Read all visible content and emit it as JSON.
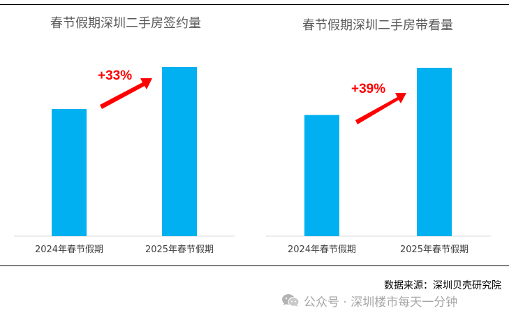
{
  "chart_data": [
    {
      "type": "bar",
      "title": "春节假期深圳二手房签约量",
      "categories": [
        "2024年春节假期",
        "2025年春节假期"
      ],
      "values": [
        100,
        133
      ],
      "annotation": "+33%",
      "bar_color": "#00b0f0"
    },
    {
      "type": "bar",
      "title": "春节假期深圳二手房带看量",
      "categories": [
        "2024年春节假期",
        "2025年春节假期"
      ],
      "values": [
        100,
        139
      ],
      "annotation": "+39%",
      "bar_color": "#00b0f0"
    }
  ],
  "source": "数据来源：深圳贝壳研究院",
  "watermark": {
    "icon": "wechat-icon",
    "text": "公众号 · 深圳楼市每天一分钟"
  },
  "colors": {
    "bar": "#00b0f0",
    "arrow": "#ff0000",
    "annotation": "#ff0000"
  }
}
